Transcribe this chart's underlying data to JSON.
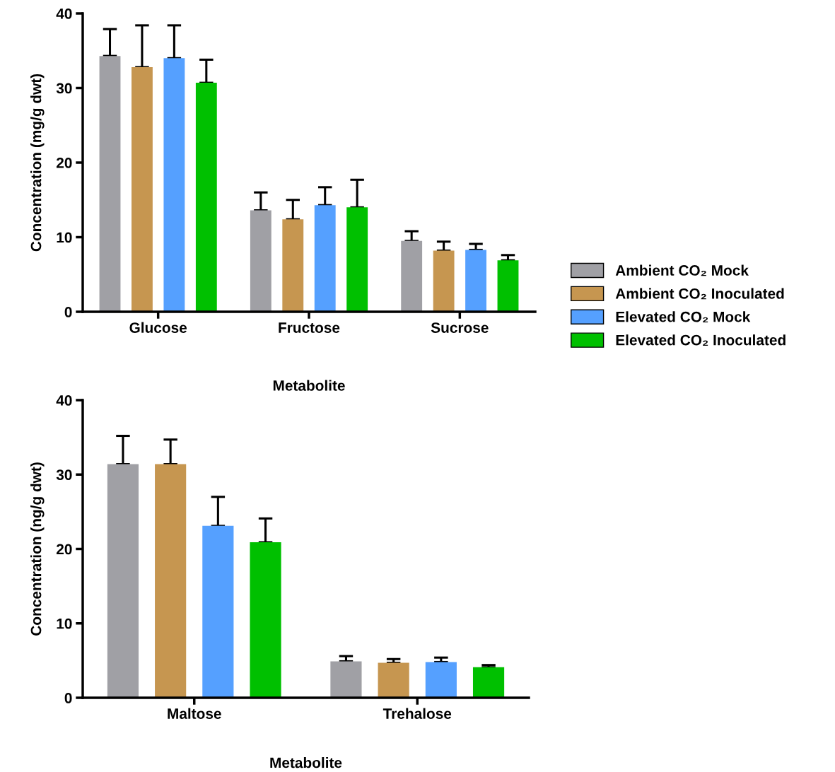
{
  "chart_data": [
    {
      "type": "bar",
      "xlabel": "Metabolite",
      "ylabel": "Concentration (mg/g dwt)",
      "categories": [
        "Glucose",
        "Fructose",
        "Sucrose"
      ],
      "ylim": [
        0,
        40
      ],
      "yticks": [
        0,
        10,
        20,
        30,
        40
      ],
      "legend": "right",
      "grid": false,
      "series": [
        {
          "name": "Ambient CO₂ Mock",
          "color": "#a0a0a5",
          "values": [
            34.3,
            13.6,
            9.5
          ],
          "errors": [
            [
              34.3,
              37.9
            ],
            [
              13.6,
              16.0
            ],
            [
              9.5,
              10.8
            ]
          ]
        },
        {
          "name": "Ambient CO₂ Inoculated",
          "color": "#c69650",
          "values": [
            32.8,
            12.4,
            8.2
          ],
          "errors": [
            [
              32.8,
              38.4
            ],
            [
              12.4,
              15.0
            ],
            [
              8.2,
              9.4
            ]
          ]
        },
        {
          "name": "Elevated CO₂ Mock",
          "color": "#55a0ff",
          "values": [
            34.0,
            14.3,
            8.3
          ],
          "errors": [
            [
              34.0,
              38.4
            ],
            [
              14.3,
              16.7
            ],
            [
              8.3,
              9.1
            ]
          ]
        },
        {
          "name": "Elevated CO₂ Inoculated",
          "color": "#00c000",
          "values": [
            30.7,
            14.0,
            6.9
          ],
          "errors": [
            [
              30.7,
              33.8
            ],
            [
              14.0,
              17.7
            ],
            [
              6.9,
              7.6
            ]
          ]
        }
      ]
    },
    {
      "type": "bar",
      "xlabel": "Metabolite",
      "ylabel": "Concentration (ng/g dwt)",
      "categories": [
        "Maltose",
        "Trehalose"
      ],
      "ylim": [
        0,
        40
      ],
      "yticks": [
        0,
        10,
        20,
        30,
        40
      ],
      "legend": false,
      "grid": false,
      "series": [
        {
          "color": "#a0a0a5",
          "values": [
            31.4,
            4.9
          ],
          "errors": [
            [
              31.4,
              35.2
            ],
            [
              4.9,
              5.6
            ]
          ]
        },
        {
          "color": "#c69650",
          "values": [
            31.4,
            4.7
          ],
          "errors": [
            [
              31.4,
              34.7
            ],
            [
              4.7,
              5.2
            ]
          ]
        },
        {
          "color": "#55a0ff",
          "values": [
            23.1,
            4.8
          ],
          "errors": [
            [
              23.1,
              27.0
            ],
            [
              4.8,
              5.4
            ]
          ]
        },
        {
          "color": "#00c000",
          "values": [
            20.9,
            4.1
          ],
          "errors": [
            [
              20.9,
              24.1
            ],
            [
              4.1,
              4.4
            ]
          ]
        }
      ]
    }
  ]
}
